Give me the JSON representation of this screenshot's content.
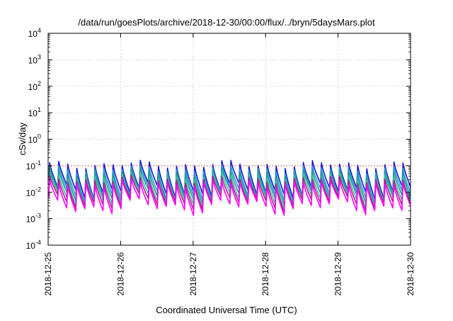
{
  "chart_data": {
    "type": "line",
    "title": "/data/run/goesPlots/archive/2018-12-30/00:00/flux/../bryn/5daysMars.plot",
    "xlabel": "Coordinated Universal Time (UTC)",
    "ylabel": "cSv/day",
    "yscale": "log",
    "ylim": [
      0.0001,
      10000
    ],
    "xlim": [
      "2018-12-25",
      "2018-12-30"
    ],
    "grid": true,
    "x_ticks": [
      "2018-12-25",
      "2018-12-26",
      "2018-12-27",
      "2018-12-28",
      "2018-12-29",
      "2018-12-30"
    ],
    "y_ticks": [
      {
        "base": "10",
        "exp": "-4"
      },
      {
        "base": "10",
        "exp": "-3"
      },
      {
        "base": "10",
        "exp": "-2"
      },
      {
        "base": "10",
        "exp": "-1"
      },
      {
        "base": "10",
        "exp": "0"
      },
      {
        "base": "10",
        "exp": "1"
      },
      {
        "base": "10",
        "exp": "2"
      },
      {
        "base": "10",
        "exp": "3"
      },
      {
        "base": "10",
        "exp": "4"
      }
    ],
    "reference_line": {
      "y": 0.1,
      "color": "#cc3333"
    },
    "pattern": {
      "cycles_per_day": 8,
      "peak_values": [
        0.11,
        0.075,
        0.055,
        0.04,
        0.03,
        0.022
      ],
      "trough_values": [
        0.011,
        0.008,
        0.0065,
        0.005,
        0.004,
        0.0028
      ]
    },
    "series": [
      {
        "color": "#1a1acc"
      },
      {
        "color": "#2b9bdc"
      },
      {
        "color": "#20a090"
      },
      {
        "color": "#40c0a0"
      },
      {
        "color": "#b0208a"
      },
      {
        "color": "#ff00ff"
      }
    ]
  }
}
